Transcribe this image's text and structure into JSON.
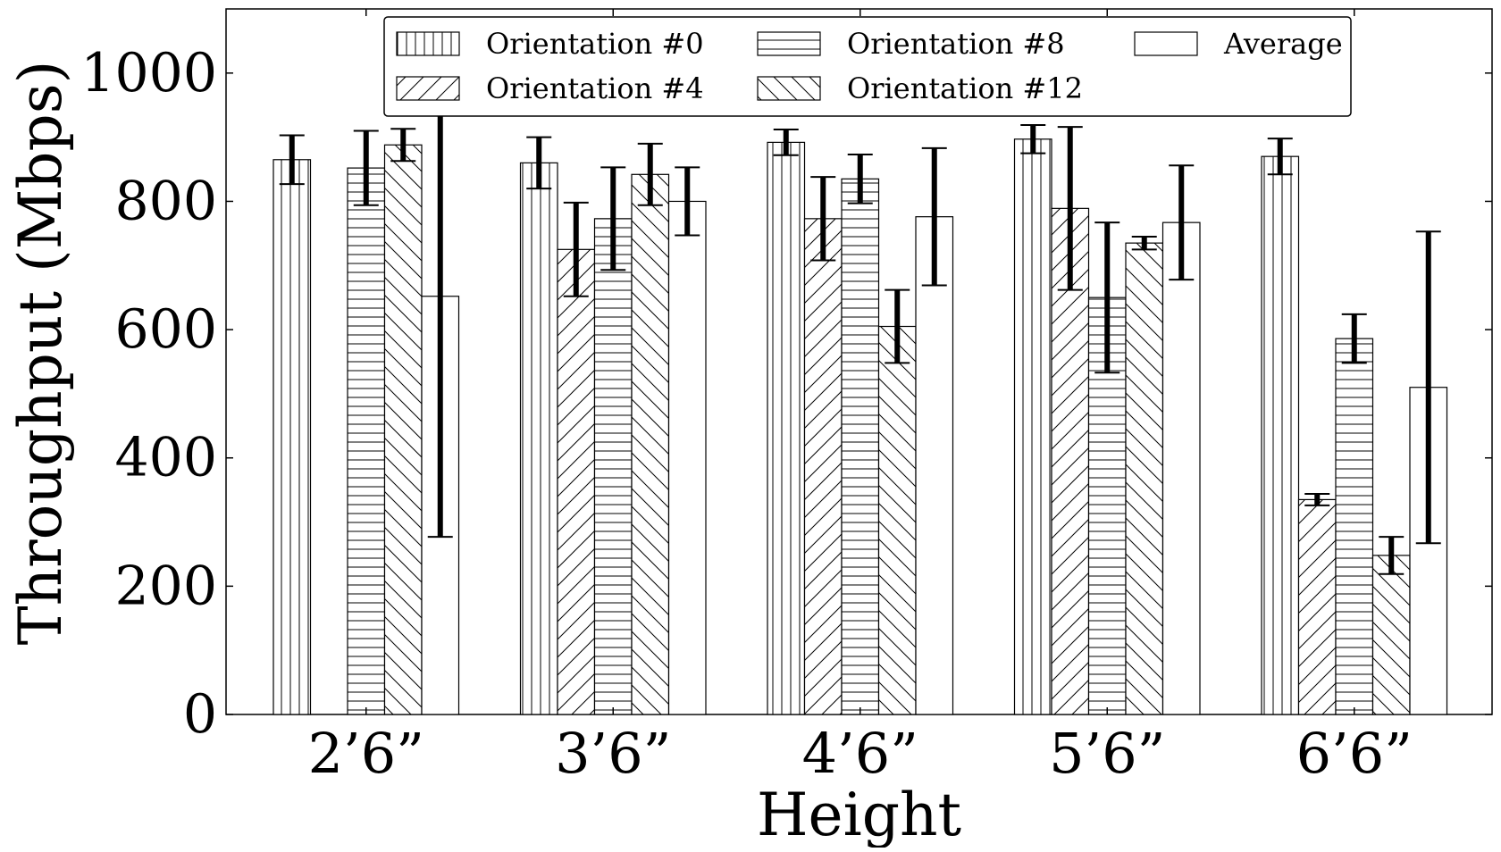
{
  "chart_data": {
    "type": "bar",
    "title": "",
    "xlabel": "Height",
    "ylabel": "Throughput (Mbps)",
    "ylim": [
      0,
      1100
    ],
    "yticks": [
      0,
      200,
      400,
      600,
      800,
      1000
    ],
    "categories": [
      "2’6”",
      "3’6”",
      "4’6”",
      "5’6”",
      "6’6”"
    ],
    "legend_position": "top-center",
    "series": [
      {
        "name": "Orientation #0",
        "pattern": "vertical",
        "values": [
          865,
          860,
          892,
          897,
          870
        ],
        "errors": [
          38,
          40,
          20,
          22,
          28
        ]
      },
      {
        "name": "Orientation #4",
        "pattern": "diagonal-up",
        "values": [
          null,
          725,
          773,
          789,
          335
        ],
        "errors": [
          null,
          73,
          65,
          127,
          9
        ]
      },
      {
        "name": "Orientation #8",
        "pattern": "horizontal",
        "values": [
          852,
          773,
          835,
          650,
          586
        ],
        "errors": [
          58,
          80,
          38,
          117,
          38
        ]
      },
      {
        "name": "Orientation #12",
        "pattern": "diagonal-down",
        "values": [
          888,
          842,
          605,
          735,
          248
        ],
        "errors": [
          25,
          48,
          57,
          10,
          29
        ]
      },
      {
        "name": "Average",
        "pattern": "none",
        "values": [
          652,
          800,
          776,
          767,
          510
        ],
        "errors": [
          375,
          53,
          107,
          89,
          243
        ]
      }
    ]
  }
}
